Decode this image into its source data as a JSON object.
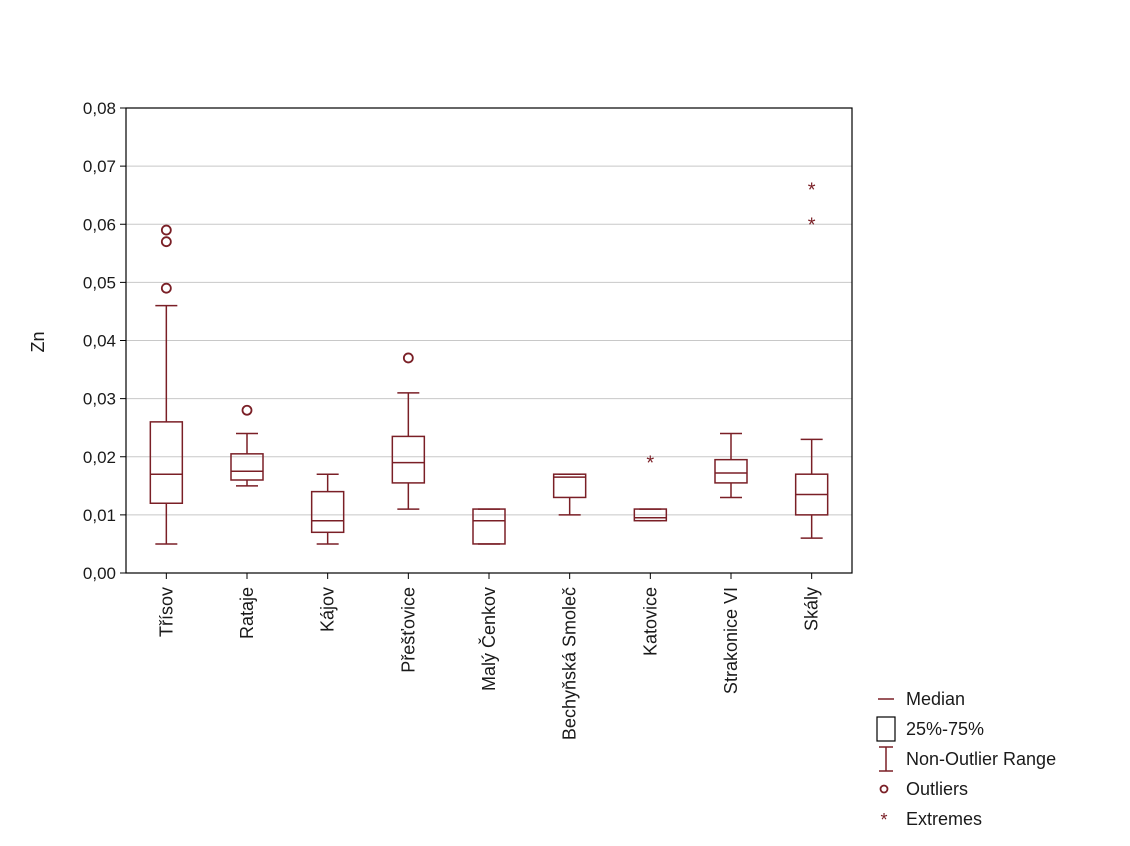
{
  "chart_data": {
    "type": "boxplot",
    "ylabel": "Zn",
    "ylim": [
      0,
      0.08
    ],
    "yticks": [
      "0,00",
      "0,01",
      "0,02",
      "0,03",
      "0,04",
      "0,05",
      "0,06",
      "0,07",
      "0,08"
    ],
    "ytick_values": [
      0,
      0.01,
      0.02,
      0.03,
      0.04,
      0.05,
      0.06,
      0.07,
      0.08
    ],
    "grid": true,
    "legend_position": "bottom-right",
    "colors": {
      "box": "#7a1f26",
      "grid": "#c8c8c8",
      "axis": "#000000"
    },
    "categories": [
      "Třísov",
      "Rataje",
      "Kájov",
      "Přešťovice",
      "Malý Čenkov",
      "Bechyňská Smoleč",
      "Katovice",
      "Strakonice VI",
      "Skály"
    ],
    "boxes": [
      {
        "category": "Třísov",
        "whisker_low": 0.005,
        "q1": 0.012,
        "median": 0.017,
        "q3": 0.026,
        "whisker_high": 0.046,
        "outliers": [
          0.049,
          0.057,
          0.059
        ],
        "extremes": []
      },
      {
        "category": "Rataje",
        "whisker_low": 0.015,
        "q1": 0.016,
        "median": 0.0175,
        "q3": 0.0205,
        "whisker_high": 0.024,
        "outliers": [
          0.028
        ],
        "extremes": []
      },
      {
        "category": "Kájov",
        "whisker_low": 0.005,
        "q1": 0.007,
        "median": 0.009,
        "q3": 0.014,
        "whisker_high": 0.017,
        "outliers": [],
        "extremes": []
      },
      {
        "category": "Přešťovice",
        "whisker_low": 0.011,
        "q1": 0.0155,
        "median": 0.019,
        "q3": 0.0235,
        "whisker_high": 0.031,
        "outliers": [
          0.037
        ],
        "extremes": []
      },
      {
        "category": "Malý Čenkov",
        "whisker_low": 0.005,
        "q1": 0.005,
        "median": 0.009,
        "q3": 0.011,
        "whisker_high": 0.011,
        "outliers": [],
        "extremes": []
      },
      {
        "category": "Bechyňská Smoleč",
        "whisker_low": 0.01,
        "q1": 0.013,
        "median": 0.0165,
        "q3": 0.017,
        "whisker_high": 0.017,
        "outliers": [],
        "extremes": []
      },
      {
        "category": "Katovice",
        "whisker_low": 0.009,
        "q1": 0.009,
        "median": 0.0095,
        "q3": 0.011,
        "whisker_high": 0.011,
        "outliers": [],
        "extremes": [
          0.019
        ]
      },
      {
        "category": "Strakonice VI",
        "whisker_low": 0.013,
        "q1": 0.0155,
        "median": 0.0172,
        "q3": 0.0195,
        "whisker_high": 0.024,
        "outliers": [],
        "extremes": []
      },
      {
        "category": "Skály",
        "whisker_low": 0.006,
        "q1": 0.01,
        "median": 0.0135,
        "q3": 0.017,
        "whisker_high": 0.023,
        "outliers": [],
        "extremes": [
          0.06,
          0.066
        ]
      }
    ],
    "legend": [
      {
        "symbol": "median",
        "label": "Median"
      },
      {
        "symbol": "box",
        "label": "25%-75%"
      },
      {
        "symbol": "whisker",
        "label": "Non-Outlier Range"
      },
      {
        "symbol": "outlier",
        "label": "Outliers"
      },
      {
        "symbol": "extreme",
        "label": "Extremes"
      }
    ]
  }
}
